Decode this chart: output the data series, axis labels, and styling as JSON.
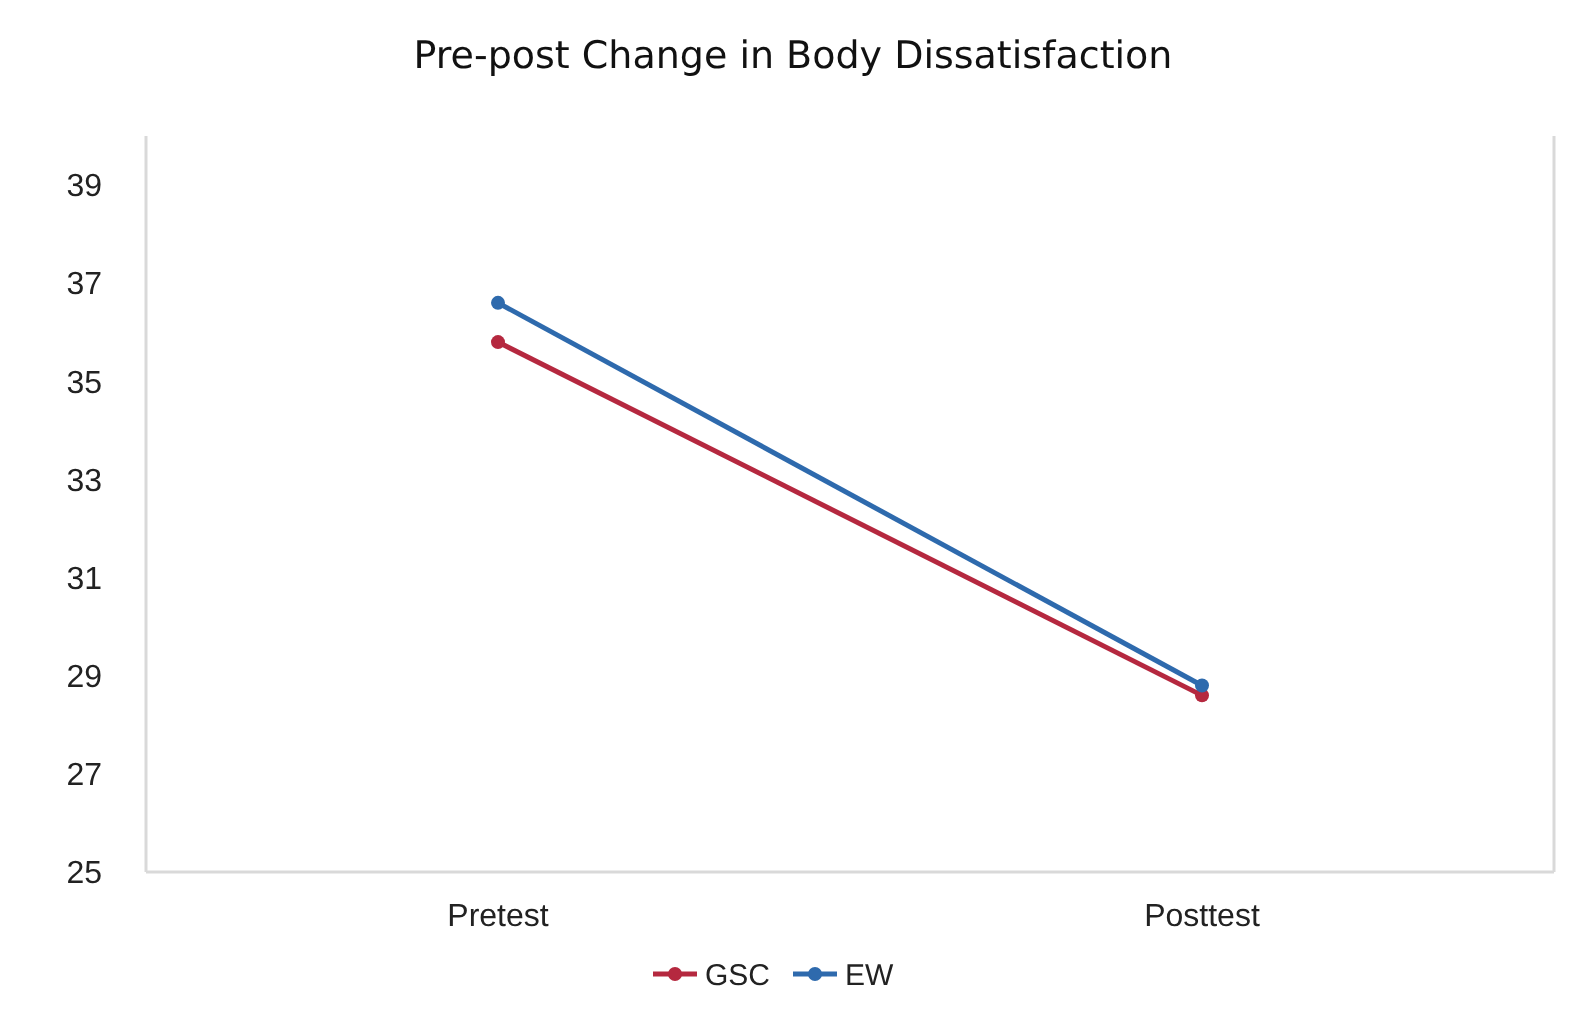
{
  "chart_data": {
    "type": "line",
    "title": "Pre-post Change in Body Dissatisfaction",
    "categories": [
      "Pretest",
      "Posttest"
    ],
    "series": [
      {
        "name": "GSC",
        "color": "#b5283f",
        "values": [
          35.8,
          28.6
        ]
      },
      {
        "name": "EW",
        "color": "#2e6aad",
        "values": [
          36.6,
          28.8
        ]
      }
    ],
    "ylim": [
      25,
      40
    ],
    "yticks": [
      25,
      27,
      29,
      31,
      33,
      35,
      37,
      39
    ],
    "grid": false,
    "legend": "bottom",
    "marker": "circle",
    "line_style": "solid"
  }
}
